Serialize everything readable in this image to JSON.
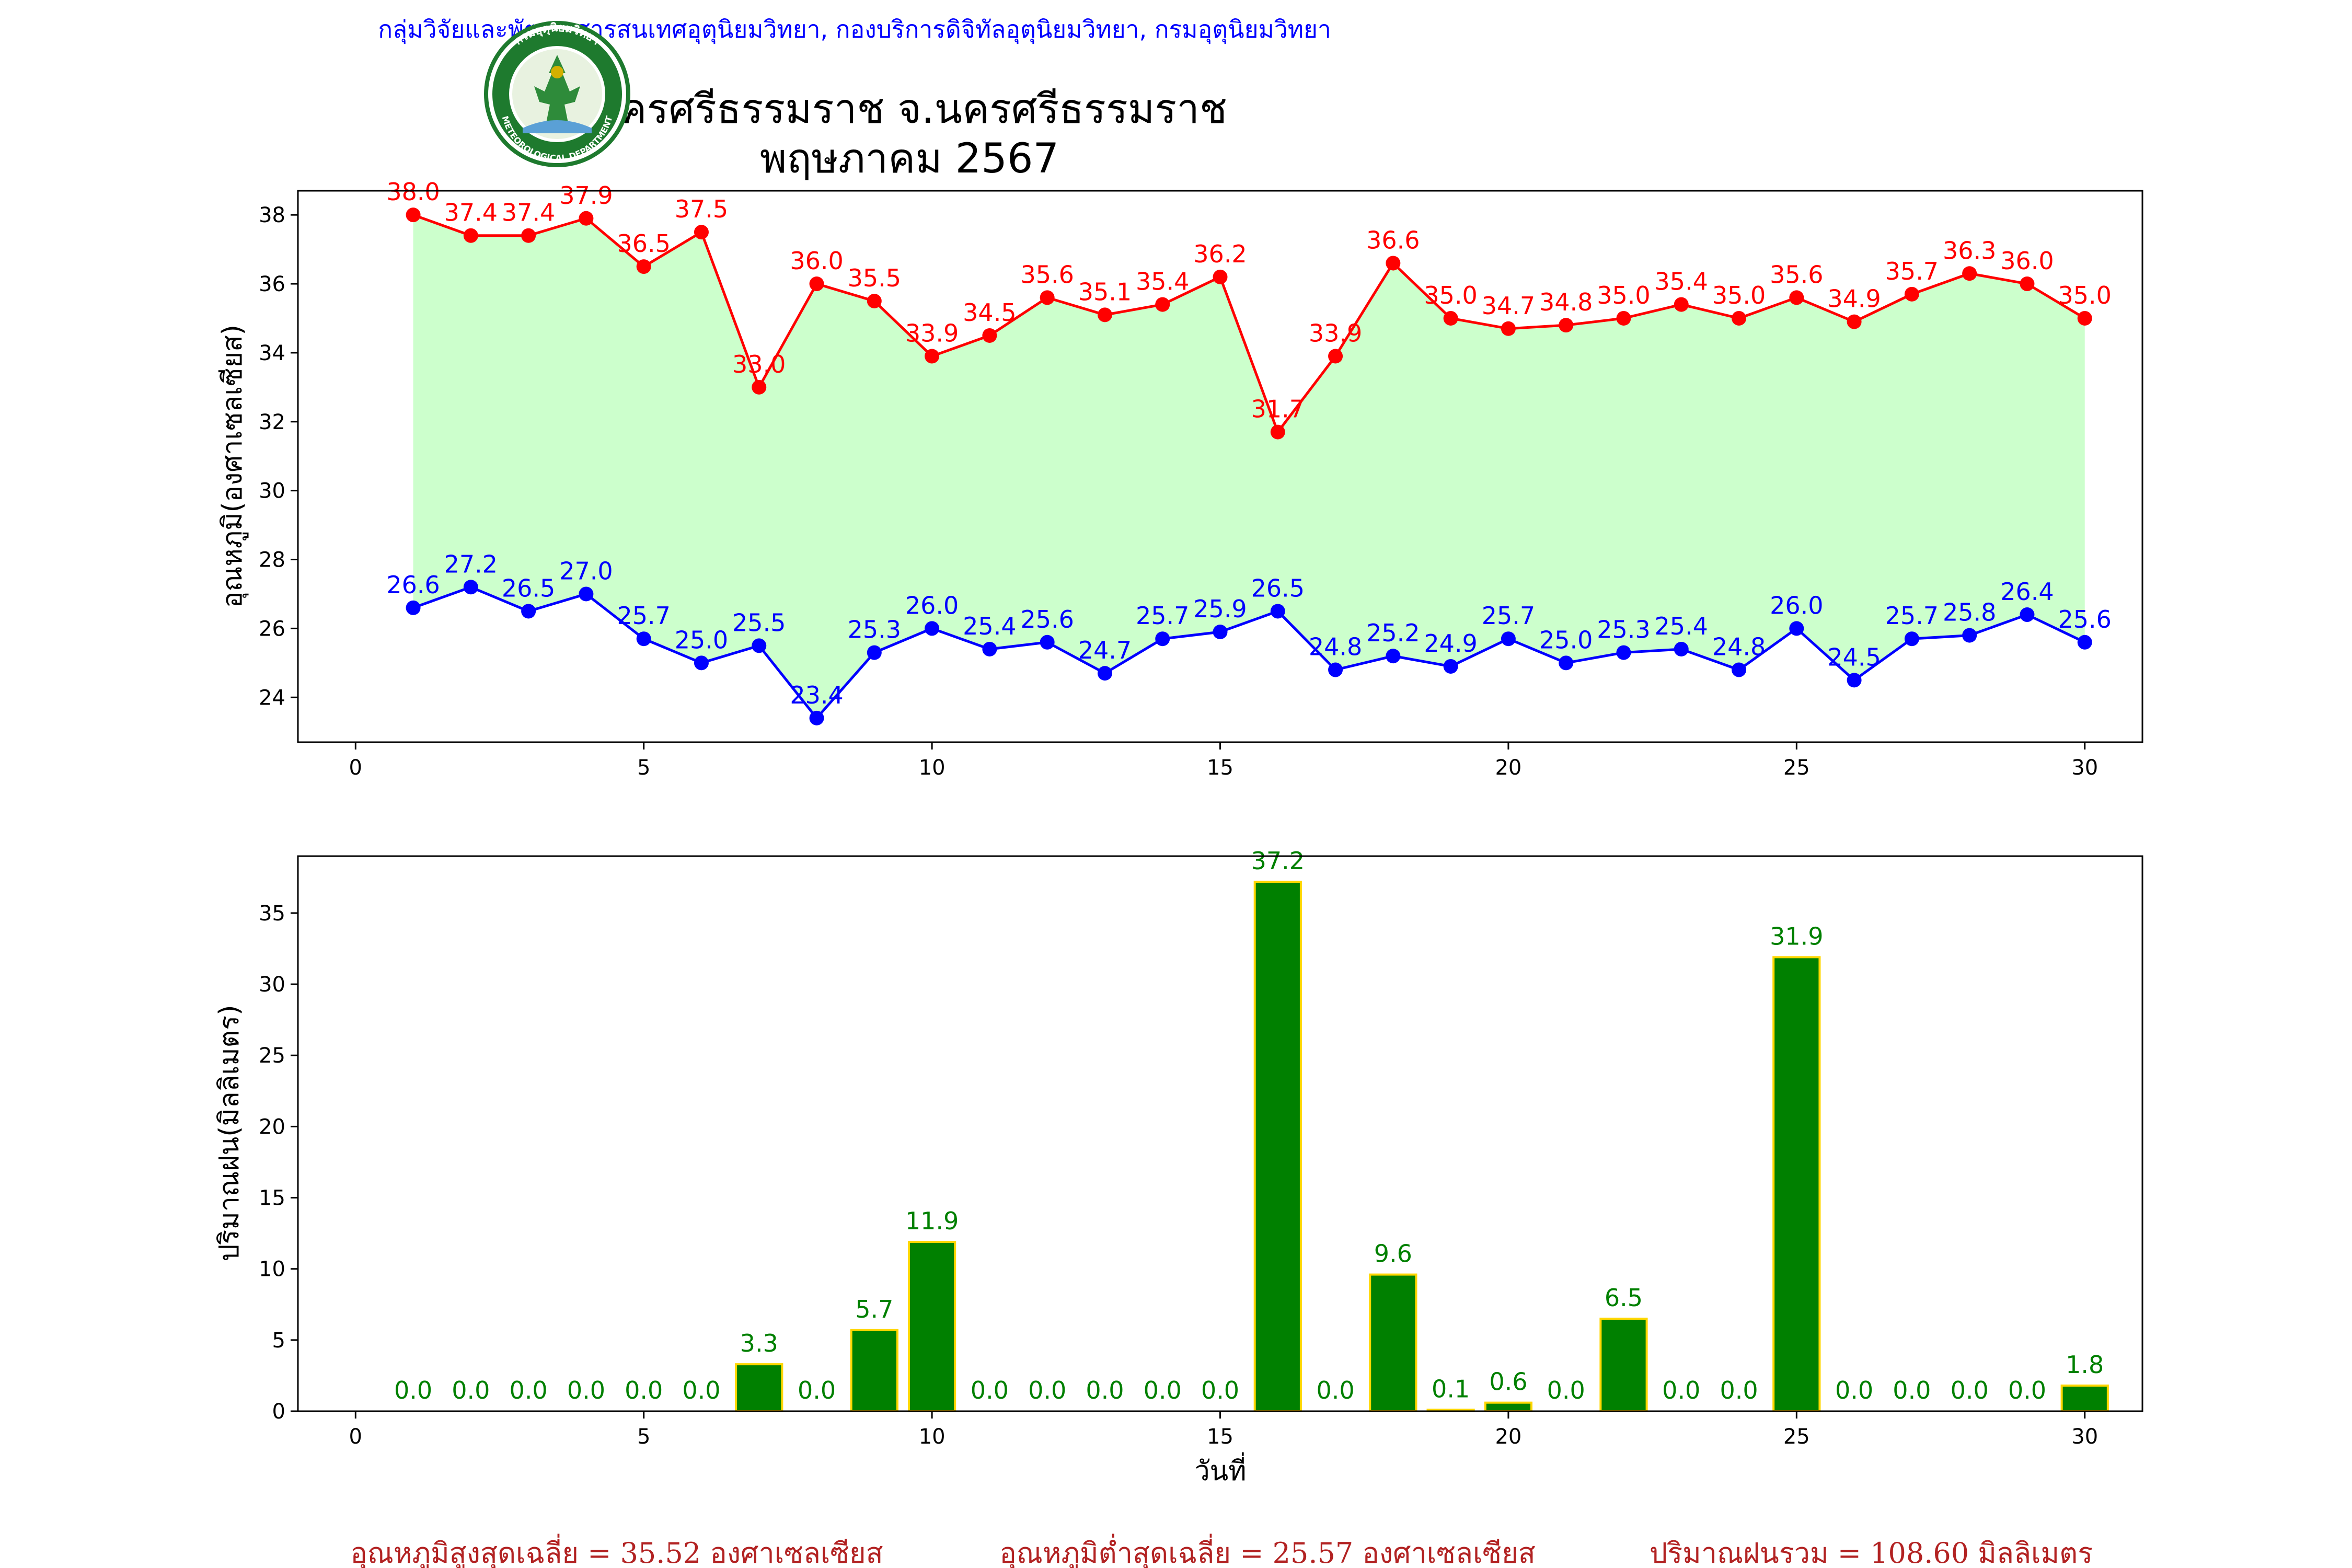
{
  "header": {
    "org_line": "กลุ่มวิจัยและพัฒนาสารสนเทศอุตุนิยมวิทยา, กองบริการดิจิทัลอุตุนิยมวิทยา, กรมอุตุนิยมวิทยา",
    "title": "นครศรีธรรมราช จ.นครศรีธรรมราช",
    "subtitle": "พฤษภาคม 2567",
    "logo_text": "กรมอุตุนิยมวิทยา",
    "logo_text_bottom": "METEOROLOGICAL DEPARTMENT"
  },
  "colors": {
    "max": "#ff0000",
    "min": "#0000ff",
    "fill": "#ccffcc",
    "rain_bar": "#008000",
    "rain_edge": "#ffd700",
    "rain_label": "#008000",
    "footer": "#b22222"
  },
  "chart_data": [
    {
      "type": "line",
      "ylabel": "อุณหภูมิ(องศาเซลเซียส)",
      "xlim": [
        -1,
        31
      ],
      "ylim": [
        22.7,
        38.7
      ],
      "xticks": [
        0,
        5,
        10,
        15,
        20,
        25,
        30
      ],
      "yticks": [
        24,
        26,
        28,
        30,
        32,
        34,
        36,
        38
      ],
      "fill_between": true,
      "x": [
        1,
        2,
        3,
        4,
        5,
        6,
        7,
        8,
        9,
        10,
        11,
        12,
        13,
        14,
        15,
        16,
        17,
        18,
        19,
        20,
        21,
        22,
        23,
        24,
        25,
        26,
        27,
        28,
        29,
        30
      ],
      "series": [
        {
          "key": "max",
          "values": [
            38.0,
            37.4,
            37.4,
            37.9,
            36.5,
            37.5,
            33.0,
            36.0,
            35.5,
            33.9,
            34.5,
            35.6,
            35.1,
            35.4,
            36.2,
            31.7,
            33.9,
            36.6,
            35.0,
            34.7,
            34.8,
            35.0,
            35.4,
            35.0,
            35.6,
            34.9,
            35.7,
            36.3,
            36.0,
            35.0
          ]
        },
        {
          "key": "min",
          "values": [
            26.6,
            27.2,
            26.5,
            27.0,
            25.7,
            25.0,
            25.5,
            23.4,
            25.3,
            26.0,
            25.4,
            25.6,
            24.7,
            25.7,
            25.9,
            26.5,
            24.8,
            25.2,
            24.9,
            25.7,
            25.0,
            25.3,
            25.4,
            24.8,
            26.0,
            24.5,
            25.7,
            25.8,
            26.4,
            25.6
          ]
        }
      ]
    },
    {
      "type": "bar",
      "ylabel": "ปริมาณฝน(มิลลิเมตร)",
      "xlabel": "วันที่",
      "xlim": [
        -1,
        31
      ],
      "ylim": [
        0,
        39
      ],
      "xticks": [
        0,
        5,
        10,
        15,
        20,
        25,
        30
      ],
      "yticks": [
        0,
        5,
        10,
        15,
        20,
        25,
        30,
        35
      ],
      "x": [
        1,
        2,
        3,
        4,
        5,
        6,
        7,
        8,
        9,
        10,
        11,
        12,
        13,
        14,
        15,
        16,
        17,
        18,
        19,
        20,
        21,
        22,
        23,
        24,
        25,
        26,
        27,
        28,
        29,
        30
      ],
      "values": [
        0.0,
        0.0,
        0.0,
        0.0,
        0.0,
        0.0,
        3.3,
        0.0,
        5.7,
        11.9,
        0.0,
        0.0,
        0.0,
        0.0,
        0.0,
        37.2,
        0.0,
        9.6,
        0.1,
        0.6,
        0.0,
        6.5,
        0.0,
        0.0,
        31.9,
        0.0,
        0.0,
        0.0,
        0.0,
        1.8
      ]
    }
  ],
  "footer": {
    "avg_max": "อุณหภูมิสูงสุดเฉลี่ย = 35.52 องศาเซลเซียส",
    "avg_min": "อุณหภูมิต่ำสุดเฉลี่ย = 25.57 องศาเซลเซียส",
    "rain_total": "ปริมาณฝนรวม = 108.60 มิลลิเมตร"
  }
}
